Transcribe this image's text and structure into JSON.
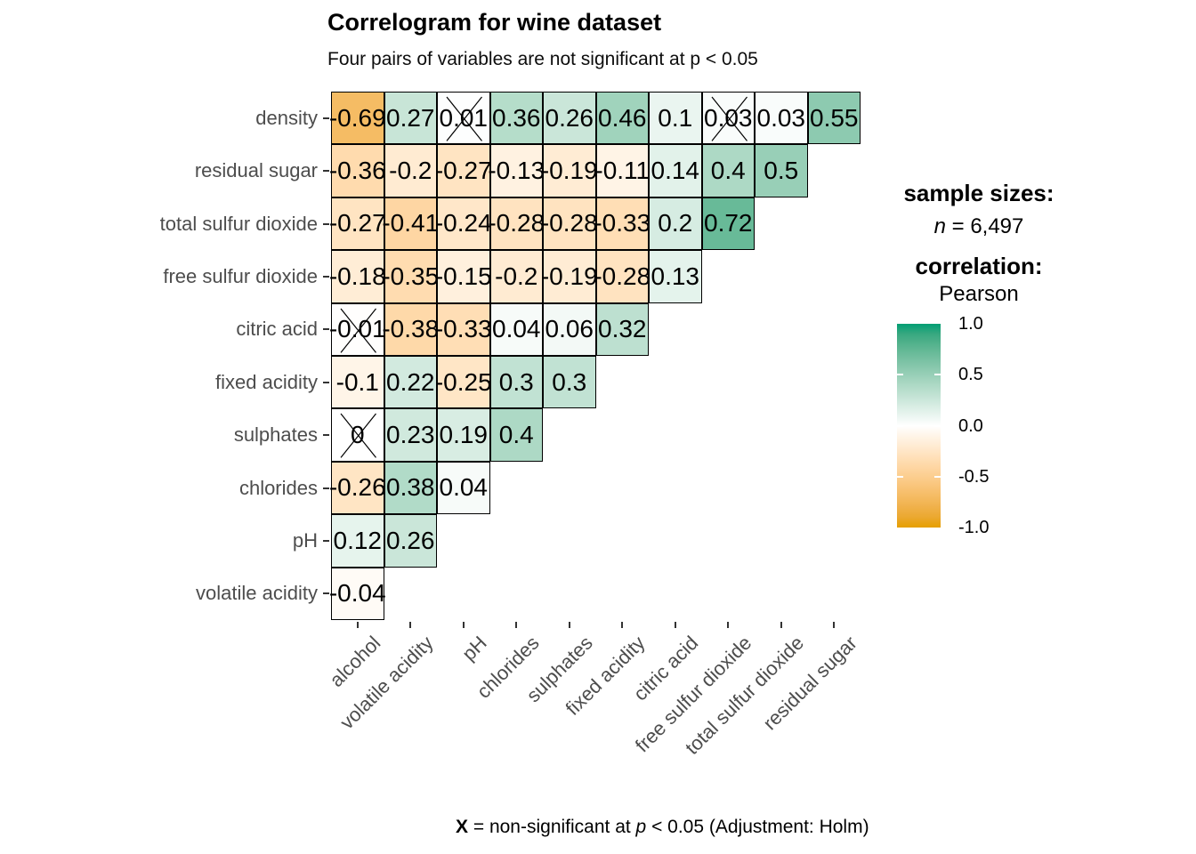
{
  "chart_data": {
    "type": "heatmap",
    "title": "Correlogram for wine dataset",
    "subtitle": "Four pairs of variables are not significant at p < 0.05",
    "x_categories": [
      "alcohol",
      "volatile acidity",
      "pH",
      "chlorides",
      "sulphates",
      "fixed acidity",
      "citric acid",
      "free sulfur dioxide",
      "total sulfur dioxide",
      "residual sugar"
    ],
    "y_categories": [
      "density",
      "residual sugar",
      "total sulfur dioxide",
      "free sulfur dioxide",
      "citric acid",
      "fixed acidity",
      "sulphates",
      "chlorides",
      "pH",
      "volatile acidity"
    ],
    "color_scale": {
      "low": "#E69F00",
      "mid": "#FFFFFF",
      "high": "#009E73",
      "domain": [
        -1,
        1
      ]
    },
    "rows": [
      {
        "label": "density",
        "cells": [
          {
            "v": -0.69,
            "text": "-0.69",
            "ns": false
          },
          {
            "v": 0.27,
            "text": "0.27",
            "ns": false
          },
          {
            "v": 0.01,
            "text": "0.01",
            "ns": true
          },
          {
            "v": 0.36,
            "text": "0.36",
            "ns": false
          },
          {
            "v": 0.26,
            "text": "0.26",
            "ns": false
          },
          {
            "v": 0.46,
            "text": "0.46",
            "ns": false
          },
          {
            "v": 0.1,
            "text": "0.1",
            "ns": false
          },
          {
            "v": 0.03,
            "text": "0.03",
            "ns": true
          },
          {
            "v": 0.03,
            "text": "0.03",
            "ns": false
          },
          {
            "v": 0.55,
            "text": "0.55",
            "ns": false
          }
        ]
      },
      {
        "label": "residual sugar",
        "cells": [
          {
            "v": -0.36,
            "text": "-0.36",
            "ns": false
          },
          {
            "v": -0.2,
            "text": "-0.2",
            "ns": false
          },
          {
            "v": -0.27,
            "text": "-0.27",
            "ns": false
          },
          {
            "v": -0.13,
            "text": "-0.13",
            "ns": false
          },
          {
            "v": -0.19,
            "text": "-0.19",
            "ns": false
          },
          {
            "v": -0.11,
            "text": "-0.11",
            "ns": false
          },
          {
            "v": 0.14,
            "text": "0.14",
            "ns": false
          },
          {
            "v": 0.4,
            "text": "0.4",
            "ns": false
          },
          {
            "v": 0.5,
            "text": "0.5",
            "ns": false
          }
        ]
      },
      {
        "label": "total sulfur dioxide",
        "cells": [
          {
            "v": -0.27,
            "text": "-0.27",
            "ns": false
          },
          {
            "v": -0.41,
            "text": "-0.41",
            "ns": false
          },
          {
            "v": -0.24,
            "text": "-0.24",
            "ns": false
          },
          {
            "v": -0.28,
            "text": "-0.28",
            "ns": false
          },
          {
            "v": -0.28,
            "text": "-0.28",
            "ns": false
          },
          {
            "v": -0.33,
            "text": "-0.33",
            "ns": false
          },
          {
            "v": 0.2,
            "text": "0.2",
            "ns": false
          },
          {
            "v": 0.72,
            "text": "0.72",
            "ns": false
          }
        ]
      },
      {
        "label": "free sulfur dioxide",
        "cells": [
          {
            "v": -0.18,
            "text": "-0.18",
            "ns": false
          },
          {
            "v": -0.35,
            "text": "-0.35",
            "ns": false
          },
          {
            "v": -0.15,
            "text": "-0.15",
            "ns": false
          },
          {
            "v": -0.2,
            "text": "-0.2",
            "ns": false
          },
          {
            "v": -0.19,
            "text": "-0.19",
            "ns": false
          },
          {
            "v": -0.28,
            "text": "-0.28",
            "ns": false
          },
          {
            "v": 0.13,
            "text": "0.13",
            "ns": false
          }
        ]
      },
      {
        "label": "citric acid",
        "cells": [
          {
            "v": -0.01,
            "text": "-0.01",
            "ns": true
          },
          {
            "v": -0.38,
            "text": "-0.38",
            "ns": false
          },
          {
            "v": -0.33,
            "text": "-0.33",
            "ns": false
          },
          {
            "v": 0.04,
            "text": "0.04",
            "ns": false
          },
          {
            "v": 0.06,
            "text": "0.06",
            "ns": false
          },
          {
            "v": 0.32,
            "text": "0.32",
            "ns": false
          }
        ]
      },
      {
        "label": "fixed acidity",
        "cells": [
          {
            "v": -0.1,
            "text": "-0.1",
            "ns": false
          },
          {
            "v": 0.22,
            "text": "0.22",
            "ns": false
          },
          {
            "v": -0.25,
            "text": "-0.25",
            "ns": false
          },
          {
            "v": 0.3,
            "text": "0.3",
            "ns": false
          },
          {
            "v": 0.3,
            "text": "0.3",
            "ns": false
          }
        ]
      },
      {
        "label": "sulphates",
        "cells": [
          {
            "v": 0,
            "text": "0",
            "ns": true
          },
          {
            "v": 0.23,
            "text": "0.23",
            "ns": false
          },
          {
            "v": 0.19,
            "text": "0.19",
            "ns": false
          },
          {
            "v": 0.4,
            "text": "0.4",
            "ns": false
          }
        ]
      },
      {
        "label": "chlorides",
        "cells": [
          {
            "v": -0.26,
            "text": "-0.26",
            "ns": false
          },
          {
            "v": 0.38,
            "text": "0.38",
            "ns": false
          },
          {
            "v": 0.04,
            "text": "0.04",
            "ns": false
          }
        ]
      },
      {
        "label": "pH",
        "cells": [
          {
            "v": 0.12,
            "text": "0.12",
            "ns": false
          },
          {
            "v": 0.26,
            "text": "0.26",
            "ns": false
          }
        ]
      },
      {
        "label": "volatile acidity",
        "cells": [
          {
            "v": -0.04,
            "text": "-0.04",
            "ns": false
          }
        ]
      }
    ]
  },
  "legend": {
    "sample_sizes_title": "sample sizes:",
    "n_italic": "n",
    "n_value": " = 6,497",
    "correlation_title": "correlation:",
    "method": "Pearson",
    "colorbar_ticks": [
      "1.0",
      "0.5",
      "0.0",
      "-0.5",
      "-1.0"
    ]
  },
  "caption": {
    "x_bold": "X",
    "middle": " = non-significant at ",
    "p_italic": "p",
    "suffix": " < 0.05 (Adjustment: Holm)"
  }
}
